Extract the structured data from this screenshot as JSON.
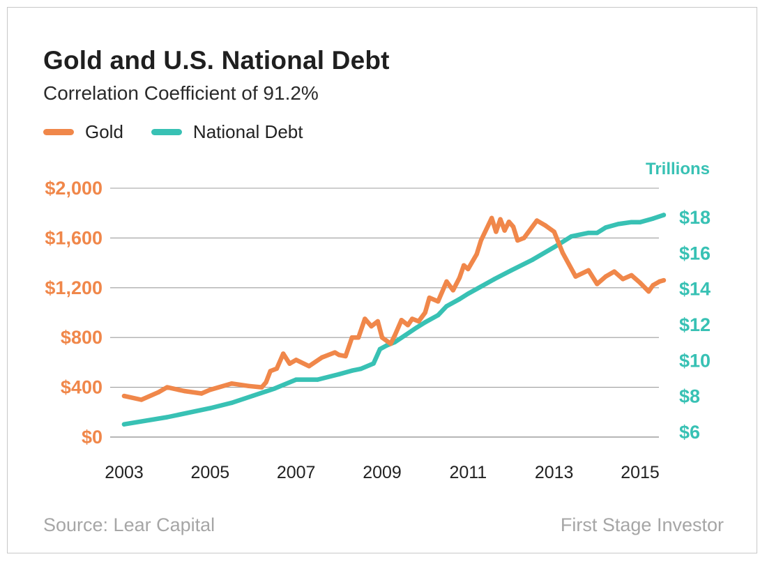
{
  "title": "Gold and U.S. National Debt",
  "subtitle": "Correlation Coefficient of 91.2%",
  "source": "Source: Lear Capital",
  "credit": "First Stage Investor",
  "colors": {
    "gold": "#f0874a",
    "debt": "#38c1b4",
    "grid": "#9e9e9e"
  },
  "chart_data": {
    "type": "line",
    "legend_position": "top-left",
    "grid": true,
    "x_tick_labels": [
      "2003",
      "2005",
      "2007",
      "2009",
      "2011",
      "2013",
      "2015"
    ],
    "x_range": [
      2003,
      2015.5
    ],
    "y_left": {
      "ticks": [
        "$0",
        "$400",
        "$800",
        "$1,200",
        "$1,600",
        "$2,000"
      ],
      "range": [
        0,
        2000
      ]
    },
    "y_right": {
      "label": "Trillions",
      "ticks": [
        "$6",
        "$8",
        "$10",
        "$12",
        "$14",
        "$16",
        "$18"
      ],
      "range": [
        6,
        18
      ]
    },
    "series": [
      {
        "name": "Gold",
        "axis": "left",
        "x": [
          2003.0,
          2003.4,
          2003.8,
          2004.0,
          2004.4,
          2004.8,
          2005.0,
          2005.5,
          2005.9,
          2006.2,
          2006.3,
          2006.4,
          2006.55,
          2006.7,
          2006.85,
          2007.0,
          2007.3,
          2007.6,
          2007.9,
          2008.0,
          2008.15,
          2008.3,
          2008.45,
          2008.6,
          2008.75,
          2008.9,
          2009.0,
          2009.2,
          2009.3,
          2009.45,
          2009.6,
          2009.7,
          2009.85,
          2010.0,
          2010.1,
          2010.3,
          2010.5,
          2010.65,
          2010.8,
          2010.9,
          2011.0,
          2011.2,
          2011.3,
          2011.55,
          2011.65,
          2011.75,
          2011.85,
          2011.95,
          2012.05,
          2012.15,
          2012.3,
          2012.6,
          2012.8,
          2013.0,
          2013.2,
          2013.5,
          2013.8,
          2014.0,
          2014.2,
          2014.4,
          2014.6,
          2014.8,
          2015.0,
          2015.2,
          2015.3,
          2015.45,
          2015.55
        ],
        "values": [
          330,
          300,
          360,
          400,
          370,
          350,
          380,
          430,
          410,
          400,
          440,
          530,
          550,
          670,
          590,
          620,
          570,
          640,
          680,
          660,
          650,
          800,
          800,
          950,
          890,
          930,
          800,
          750,
          820,
          940,
          900,
          950,
          930,
          1000,
          1120,
          1090,
          1250,
          1180,
          1280,
          1380,
          1350,
          1470,
          1580,
          1760,
          1650,
          1750,
          1660,
          1730,
          1690,
          1580,
          1600,
          1740,
          1700,
          1650,
          1480,
          1290,
          1340,
          1230,
          1290,
          1330,
          1270,
          1300,
          1240,
          1170,
          1220,
          1250,
          1260
        ]
      },
      {
        "name": "National Debt",
        "axis": "right",
        "x": [
          2003.0,
          2004.0,
          2005.0,
          2005.5,
          2006.0,
          2006.5,
          2007.0,
          2007.5,
          2008.0,
          2008.3,
          2008.5,
          2008.8,
          2008.95,
          2009.1,
          2009.3,
          2009.55,
          2009.8,
          2010.0,
          2010.3,
          2010.5,
          2010.8,
          2011.0,
          2011.3,
          2011.6,
          2012.0,
          2012.5,
          2013.0,
          2013.4,
          2013.8,
          2014.0,
          2014.2,
          2014.5,
          2014.8,
          2015.0,
          2015.3,
          2015.55
        ],
        "values": [
          6.4,
          6.8,
          7.3,
          7.6,
          8.0,
          8.4,
          8.9,
          8.9,
          9.2,
          9.4,
          9.5,
          9.8,
          10.6,
          10.8,
          11.0,
          11.4,
          11.8,
          12.1,
          12.5,
          13.0,
          13.4,
          13.7,
          14.1,
          14.5,
          15.0,
          15.6,
          16.3,
          16.9,
          17.1,
          17.1,
          17.4,
          17.6,
          17.7,
          17.7,
          17.9,
          18.1
        ]
      }
    ]
  }
}
